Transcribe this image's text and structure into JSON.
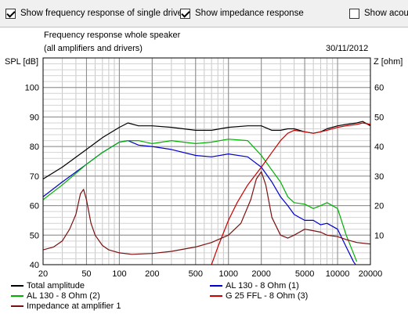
{
  "toolbar": {
    "cb1": {
      "label": "Show frequency response of single drive",
      "checked": true
    },
    "cb2": {
      "label": "Show impedance response",
      "checked": true
    },
    "cb3": {
      "label": "Show acous",
      "checked": false
    }
  },
  "chart_data": {
    "type": "line",
    "title": "Frequency response whole speaker",
    "subtitle": "(all amplifiers and drivers)",
    "date": "30/11/2012",
    "ylabel": "SPL [dB]",
    "y2label": "Z [ohm]",
    "xscale": "log",
    "xlim": [
      20,
      20000
    ],
    "ylim": [
      40,
      110
    ],
    "y2lim": [
      0,
      70
    ],
    "xticks": [
      20,
      50,
      100,
      200,
      500,
      1000,
      2000,
      5000,
      10000,
      20000
    ],
    "xtick_labels": [
      "20",
      "50",
      "100",
      "200",
      "500",
      "1000",
      "2000",
      "5000",
      "10000",
      "20000"
    ],
    "yticks": [
      40,
      50,
      60,
      70,
      80,
      90,
      100
    ],
    "yticks_labels": [
      "40",
      "50",
      "60",
      "70",
      "80",
      "90",
      "100"
    ],
    "y2ticks": [
      10,
      20,
      30,
      40,
      50,
      60
    ],
    "y2ticks_labels": [
      "10",
      "20",
      "30",
      "40",
      "50",
      "60"
    ],
    "grid": true,
    "legend_position": "bottom",
    "series": [
      {
        "name": "Total amplitude",
        "axis": "left",
        "color": "#000000",
        "x": [
          20,
          30,
          50,
          70,
          100,
          120,
          150,
          200,
          300,
          500,
          700,
          1000,
          1500,
          2000,
          2500,
          3000,
          3500,
          4000,
          5000,
          6000,
          7000,
          8000,
          10000,
          12000,
          15000,
          17000,
          20000
        ],
        "y": [
          69,
          73,
          79,
          83,
          86.5,
          88,
          87,
          87,
          86.5,
          85.5,
          85.5,
          86.5,
          87,
          87,
          85.5,
          85.5,
          86,
          86,
          85,
          84.5,
          85,
          86,
          87,
          87.5,
          88,
          88.5,
          87
        ]
      },
      {
        "name": "AL 130 - 8 Ohm (1)",
        "axis": "left",
        "color": "#0000cc",
        "x": [
          20,
          30,
          50,
          70,
          100,
          120,
          150,
          200,
          300,
          500,
          700,
          1000,
          1500,
          2000,
          2500,
          3000,
          3500,
          4000,
          5000,
          6000,
          7000,
          8000,
          10000,
          12000,
          14000,
          16000
        ],
        "y": [
          63,
          68,
          74,
          78,
          81.5,
          82,
          80.5,
          80,
          79,
          77,
          76.5,
          77.5,
          76.5,
          73,
          68,
          63,
          60,
          57,
          55,
          55,
          53.5,
          54,
          52,
          46,
          41,
          38
        ]
      },
      {
        "name": "AL 130 - 8 Ohm (2)",
        "axis": "left",
        "color": "#00b000",
        "x": [
          20,
          30,
          50,
          70,
          100,
          120,
          150,
          200,
          300,
          500,
          700,
          1000,
          1500,
          2000,
          2500,
          3000,
          3500,
          4000,
          5000,
          6000,
          7000,
          8000,
          10000,
          12000,
          15000
        ],
        "y": [
          62,
          67,
          74,
          78,
          81.5,
          82,
          82,
          81,
          82,
          81,
          81.5,
          82.5,
          82,
          77,
          72,
          68,
          63,
          61,
          60.5,
          59,
          60,
          61,
          59,
          50,
          41
        ]
      },
      {
        "name": "G 25 FFL - 8 Ohm (3)",
        "axis": "left",
        "color": "#cc0000",
        "x": [
          700,
          800,
          1000,
          1200,
          1500,
          2000,
          2500,
          3000,
          3500,
          4000,
          5000,
          6000,
          7000,
          8000,
          10000,
          12000,
          15000,
          17000,
          20000
        ],
        "y": [
          40,
          46,
          55,
          61,
          67,
          73,
          78,
          82,
          84.5,
          85.5,
          85,
          84.5,
          85,
          85.5,
          86.5,
          87,
          87.5,
          88,
          87.5
        ]
      },
      {
        "name": "Impedance at amplifier 1",
        "axis": "right",
        "color": "#7a1010",
        "x": [
          20,
          25,
          30,
          35,
          40,
          44,
          47,
          50,
          55,
          60,
          70,
          80,
          100,
          130,
          200,
          300,
          500,
          700,
          1000,
          1300,
          1600,
          1800,
          2000,
          2200,
          2500,
          3000,
          3500,
          4000,
          5000,
          6000,
          7000,
          8000,
          10000,
          12000,
          15000,
          20000
        ],
        "y": [
          5,
          6,
          8,
          12,
          17,
          24,
          25.5,
          22,
          14,
          10,
          6.5,
          5,
          4,
          3.5,
          3.8,
          4.5,
          6,
          7.5,
          10,
          14,
          22,
          29,
          31.5,
          27,
          16,
          10,
          9,
          10,
          12,
          11.5,
          11,
          10,
          9.5,
          8.5,
          7.5,
          7
        ]
      }
    ]
  }
}
